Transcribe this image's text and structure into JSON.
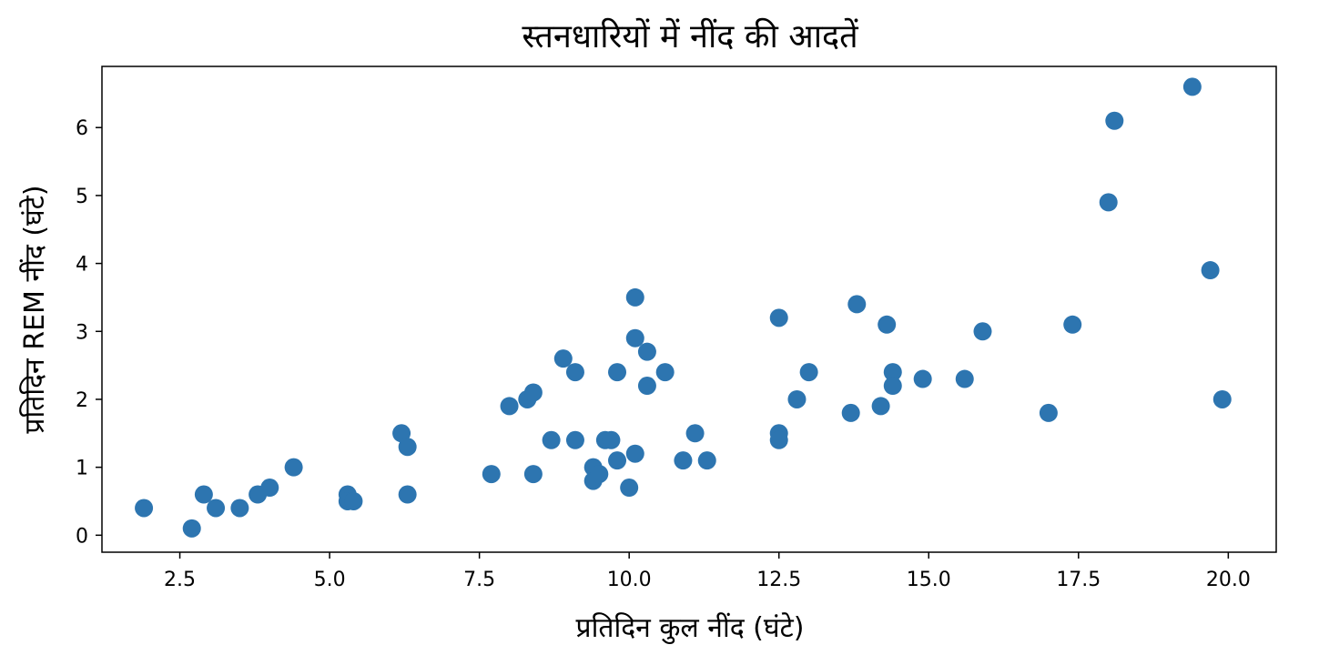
{
  "chart_data": {
    "type": "scatter",
    "title": "स्तनधारियों में नींद की आदतें",
    "xlabel": "प्रतिदिन कुल नींद (घंटे)",
    "ylabel": "प्रतिदिन REM नींद (घंटे)",
    "xlim": [
      1.2,
      20.8
    ],
    "ylim": [
      -0.25,
      6.9
    ],
    "xticks": [
      2.5,
      5.0,
      7.5,
      10.0,
      12.5,
      15.0,
      17.5,
      20.0
    ],
    "xtick_labels": [
      "2.5",
      "5.0",
      "7.5",
      "10.0",
      "12.5",
      "15.0",
      "17.5",
      "20.0"
    ],
    "yticks": [
      0,
      1,
      2,
      3,
      4,
      5,
      6
    ],
    "ytick_labels": [
      "0",
      "1",
      "2",
      "3",
      "4",
      "5",
      "6"
    ],
    "grid": false,
    "color": "#2d75b0",
    "points": [
      {
        "x": 1.9,
        "y": 0.4
      },
      {
        "x": 2.7,
        "y": 0.1
      },
      {
        "x": 2.9,
        "y": 0.6
      },
      {
        "x": 3.1,
        "y": 0.4
      },
      {
        "x": 3.5,
        "y": 0.4
      },
      {
        "x": 3.8,
        "y": 0.6
      },
      {
        "x": 4.0,
        "y": 0.7
      },
      {
        "x": 4.4,
        "y": 1.0
      },
      {
        "x": 5.3,
        "y": 0.6
      },
      {
        "x": 5.3,
        "y": 0.5
      },
      {
        "x": 5.4,
        "y": 0.5
      },
      {
        "x": 6.2,
        "y": 1.5
      },
      {
        "x": 6.3,
        "y": 1.3
      },
      {
        "x": 6.3,
        "y": 0.6
      },
      {
        "x": 7.7,
        "y": 0.9
      },
      {
        "x": 8.0,
        "y": 1.9
      },
      {
        "x": 8.3,
        "y": 2.0
      },
      {
        "x": 8.4,
        "y": 2.1
      },
      {
        "x": 8.4,
        "y": 0.9
      },
      {
        "x": 8.7,
        "y": 1.4
      },
      {
        "x": 8.9,
        "y": 2.6
      },
      {
        "x": 9.1,
        "y": 2.4
      },
      {
        "x": 9.1,
        "y": 1.4
      },
      {
        "x": 9.4,
        "y": 1.0
      },
      {
        "x": 9.4,
        "y": 0.8
      },
      {
        "x": 9.5,
        "y": 0.9
      },
      {
        "x": 9.6,
        "y": 1.4
      },
      {
        "x": 9.7,
        "y": 1.4
      },
      {
        "x": 9.8,
        "y": 2.4
      },
      {
        "x": 9.8,
        "y": 1.1
      },
      {
        "x": 10.0,
        "y": 0.7
      },
      {
        "x": 10.1,
        "y": 3.5
      },
      {
        "x": 10.1,
        "y": 2.9
      },
      {
        "x": 10.1,
        "y": 1.2
      },
      {
        "x": 10.3,
        "y": 2.7
      },
      {
        "x": 10.3,
        "y": 2.2
      },
      {
        "x": 10.6,
        "y": 2.4
      },
      {
        "x": 10.9,
        "y": 1.1
      },
      {
        "x": 11.1,
        "y": 1.5
      },
      {
        "x": 11.3,
        "y": 1.1
      },
      {
        "x": 12.5,
        "y": 3.2
      },
      {
        "x": 12.5,
        "y": 1.5
      },
      {
        "x": 12.5,
        "y": 1.4
      },
      {
        "x": 12.8,
        "y": 2.0
      },
      {
        "x": 13.0,
        "y": 2.4
      },
      {
        "x": 13.7,
        "y": 1.8
      },
      {
        "x": 13.8,
        "y": 3.4
      },
      {
        "x": 14.2,
        "y": 1.9
      },
      {
        "x": 14.3,
        "y": 3.1
      },
      {
        "x": 14.4,
        "y": 2.4
      },
      {
        "x": 14.4,
        "y": 2.2
      },
      {
        "x": 14.9,
        "y": 2.3
      },
      {
        "x": 15.6,
        "y": 2.3
      },
      {
        "x": 15.9,
        "y": 3.0
      },
      {
        "x": 17.0,
        "y": 1.8
      },
      {
        "x": 17.4,
        "y": 3.1
      },
      {
        "x": 18.0,
        "y": 4.9
      },
      {
        "x": 18.1,
        "y": 6.1
      },
      {
        "x": 19.4,
        "y": 6.6
      },
      {
        "x": 19.7,
        "y": 3.9
      },
      {
        "x": 19.9,
        "y": 2.0
      }
    ]
  }
}
